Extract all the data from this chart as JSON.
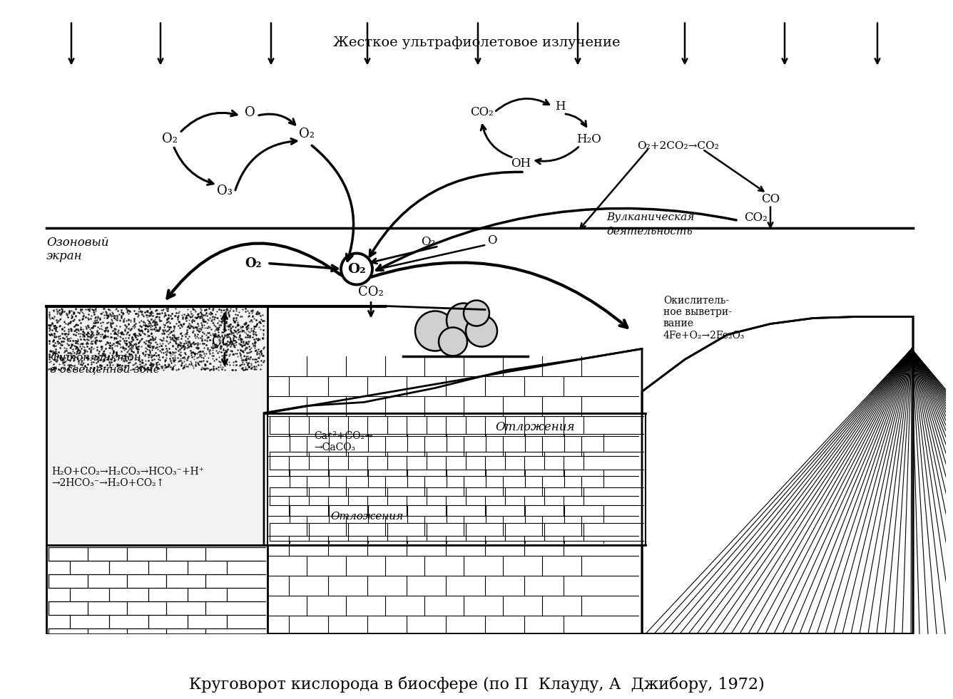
{
  "title": "Круговорот кислорода в биосфере (по П  Клауду, А  Джибору, 1972)",
  "bg": "#ffffff",
  "fg": "#000000",
  "uv_text": "Жесткое ультрафиолетовое излучение",
  "ozone_screen": "Озоновый\nэкран",
  "volcanic": "Вулканическая  CO₂\nдеятельность",
  "oxidative": "Окислитель-\nное выветри-\nвание\n4Fe+O₂→2Fe₂O₃",
  "phyto": "Фитопланктон\nв освещенной зоне",
  "deposits_slope": "Отложения",
  "deposits_bottom": "Отложения",
  "water_chem": "H₂O+CO₂→H₂CO₃→HCO₃⁻+H⁺\n→2HCO₃⁻→H₂O+CO₂↑",
  "calcium": "Ca⁺²+CO₂→\n→CaCO₃"
}
